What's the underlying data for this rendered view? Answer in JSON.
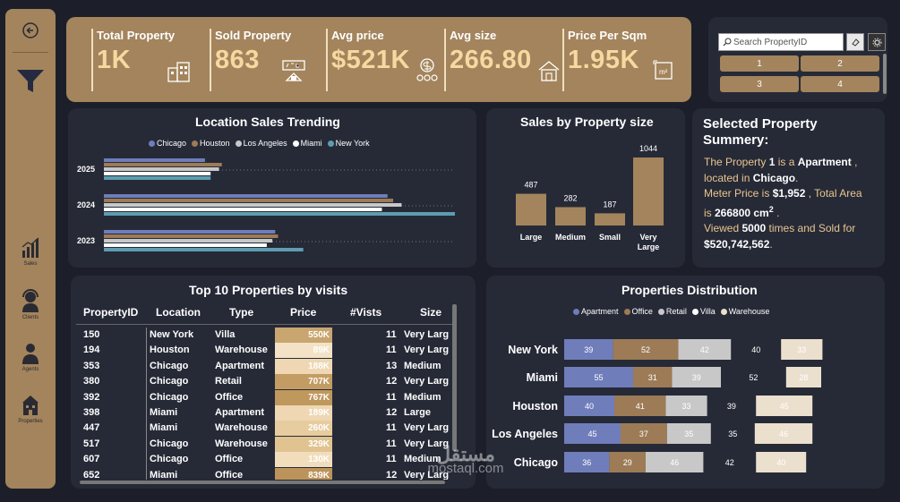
{
  "sidebar": {
    "items": [
      {
        "label": "Sales",
        "icon": "bar-chart-icon"
      },
      {
        "label": "Clients",
        "icon": "headset-icon"
      },
      {
        "label": "Agents",
        "icon": "person-icon"
      },
      {
        "label": "Properties",
        "icon": "building-icon"
      }
    ]
  },
  "kpis": [
    {
      "title": "Total Property",
      "value": "1K",
      "icon": "building-icon"
    },
    {
      "title": "Sold Property",
      "value": "863",
      "icon": "sold-sign-icon"
    },
    {
      "title": "Avg price",
      "value": "$521K",
      "icon": "coins-icon"
    },
    {
      "title": "Avg size",
      "value": "266.80",
      "icon": "house-icon"
    },
    {
      "title": "Price Per Sqm",
      "value": "1.95K",
      "icon": "area-m2-icon"
    }
  ],
  "slicer": {
    "search_placeholder": "Search PropertyID",
    "chips": [
      "1",
      "2",
      "3",
      "4"
    ]
  },
  "colors": {
    "gold": "#a3845c",
    "panel": "#262a37",
    "chicago": "#6f7dbb",
    "houston": "#9c7b56",
    "los_angeles": "#c8c8c8",
    "miami": "#ffffff",
    "new_york": "#5e9cb0"
  },
  "location_trending": {
    "title": "Location Sales Trending",
    "legend": [
      "Chicago",
      "Houston",
      "Los Angeles",
      "Miami",
      "New York"
    ],
    "chart_data": {
      "type": "bar",
      "orientation": "horizontal",
      "categories": [
        "2025",
        "2024",
        "2023"
      ],
      "series": [
        {
          "name": "Chicago",
          "values": [
            36,
            101,
            61
          ]
        },
        {
          "name": "Houston",
          "values": [
            42,
            103,
            62
          ]
        },
        {
          "name": "Los Angeles",
          "values": [
            41,
            106,
            60
          ]
        },
        {
          "name": "Miami",
          "values": [
            38,
            99,
            58
          ]
        },
        {
          "name": "New York",
          "values": [
            38,
            125,
            71
          ]
        }
      ]
    }
  },
  "size_sales": {
    "title": "Sales by Property size",
    "chart_data": {
      "type": "bar",
      "categories": [
        "Large",
        "Medium",
        "Small",
        "Very Large"
      ],
      "values": [
        487,
        282,
        187,
        1044
      ]
    }
  },
  "summary": {
    "title": "Selected Property Summery:",
    "p1": "The Property ",
    "id": "1",
    "p2": " is a ",
    "type": "Apartment",
    "p3": " ,",
    "p4": "located in ",
    "city": "Chicago",
    "p5": ".",
    "p6": "Meter Price  is ",
    "meter_price": "$1,952",
    "p7": " , Total Area",
    "p8": "is ",
    "area": "266800 cm",
    "area_sup": "2",
    "p9": " .",
    "p10": "Viewed ",
    "views": "5000",
    "p11": " times and Sold for",
    "sold_for": "$520,742,562",
    "p12": "."
  },
  "top10": {
    "title": "Top 10 Properties by visits",
    "headers": [
      "PropertyID",
      "Location",
      "Type",
      "Price",
      "#Vists",
      "Size"
    ],
    "rows": [
      {
        "id": "150",
        "loc": "New York",
        "type": "Villa",
        "price": "550K",
        "visits": "11",
        "size": "Very Larg",
        "shade": "#c9a570"
      },
      {
        "id": "194",
        "loc": "Houston",
        "type": "Warehouse",
        "price": "89K",
        "visits": "11",
        "size": "Very Larg",
        "shade": "#f3e2c6"
      },
      {
        "id": "353",
        "loc": "Chicago",
        "type": "Apartment",
        "price": "188K",
        "visits": "13",
        "size": "Medium",
        "shade": "#eed7b2"
      },
      {
        "id": "380",
        "loc": "Chicago",
        "type": "Retail",
        "price": "707K",
        "visits": "12",
        "size": "Very Larg",
        "shade": "#c39c63"
      },
      {
        "id": "392",
        "loc": "Chicago",
        "type": "Office",
        "price": "767K",
        "visits": "11",
        "size": "Medium",
        "shade": "#bf985e"
      },
      {
        "id": "398",
        "loc": "Miami",
        "type": "Apartment",
        "price": "189K",
        "visits": "12",
        "size": "Large",
        "shade": "#eed7b2"
      },
      {
        "id": "447",
        "loc": "Miami",
        "type": "Warehouse",
        "price": "260K",
        "visits": "11",
        "size": "Very Larg",
        "shade": "#e6cc9f"
      },
      {
        "id": "517",
        "loc": "Chicago",
        "type": "Warehouse",
        "price": "329K",
        "visits": "11",
        "size": "Very Larg",
        "shade": "#e0c390"
      },
      {
        "id": "607",
        "loc": "Chicago",
        "type": "Office",
        "price": "130K",
        "visits": "11",
        "size": "Medium",
        "shade": "#f1ddbc"
      },
      {
        "id": "652",
        "loc": "Miami",
        "type": "Office",
        "price": "839K",
        "visits": "12",
        "size": "Very Larg",
        "shade": "#bc935a"
      }
    ]
  },
  "distribution": {
    "title": "Properties Distribution",
    "legend": [
      "Apartment",
      "Office",
      "Retail",
      "Villa",
      "Warehouse"
    ],
    "chart_data": {
      "type": "bar",
      "orientation": "horizontal",
      "stacked": true,
      "categories": [
        "New York",
        "Miami",
        "Houston",
        "Los Angeles",
        "Chicago"
      ],
      "series": [
        {
          "name": "Apartment",
          "values": [
            39,
            55,
            40,
            45,
            36
          ]
        },
        {
          "name": "Office",
          "values": [
            52,
            31,
            41,
            37,
            29
          ]
        },
        {
          "name": "Retail",
          "values": [
            42,
            39,
            33,
            35,
            46
          ]
        },
        {
          "name": "Villa",
          "values": [
            40,
            52,
            39,
            35,
            42
          ]
        },
        {
          "name": "Warehouse",
          "values": [
            33,
            28,
            45,
            46,
            40
          ]
        }
      ]
    }
  },
  "watermark": {
    "line1": "مستقل",
    "line2": "mostaql.com"
  }
}
